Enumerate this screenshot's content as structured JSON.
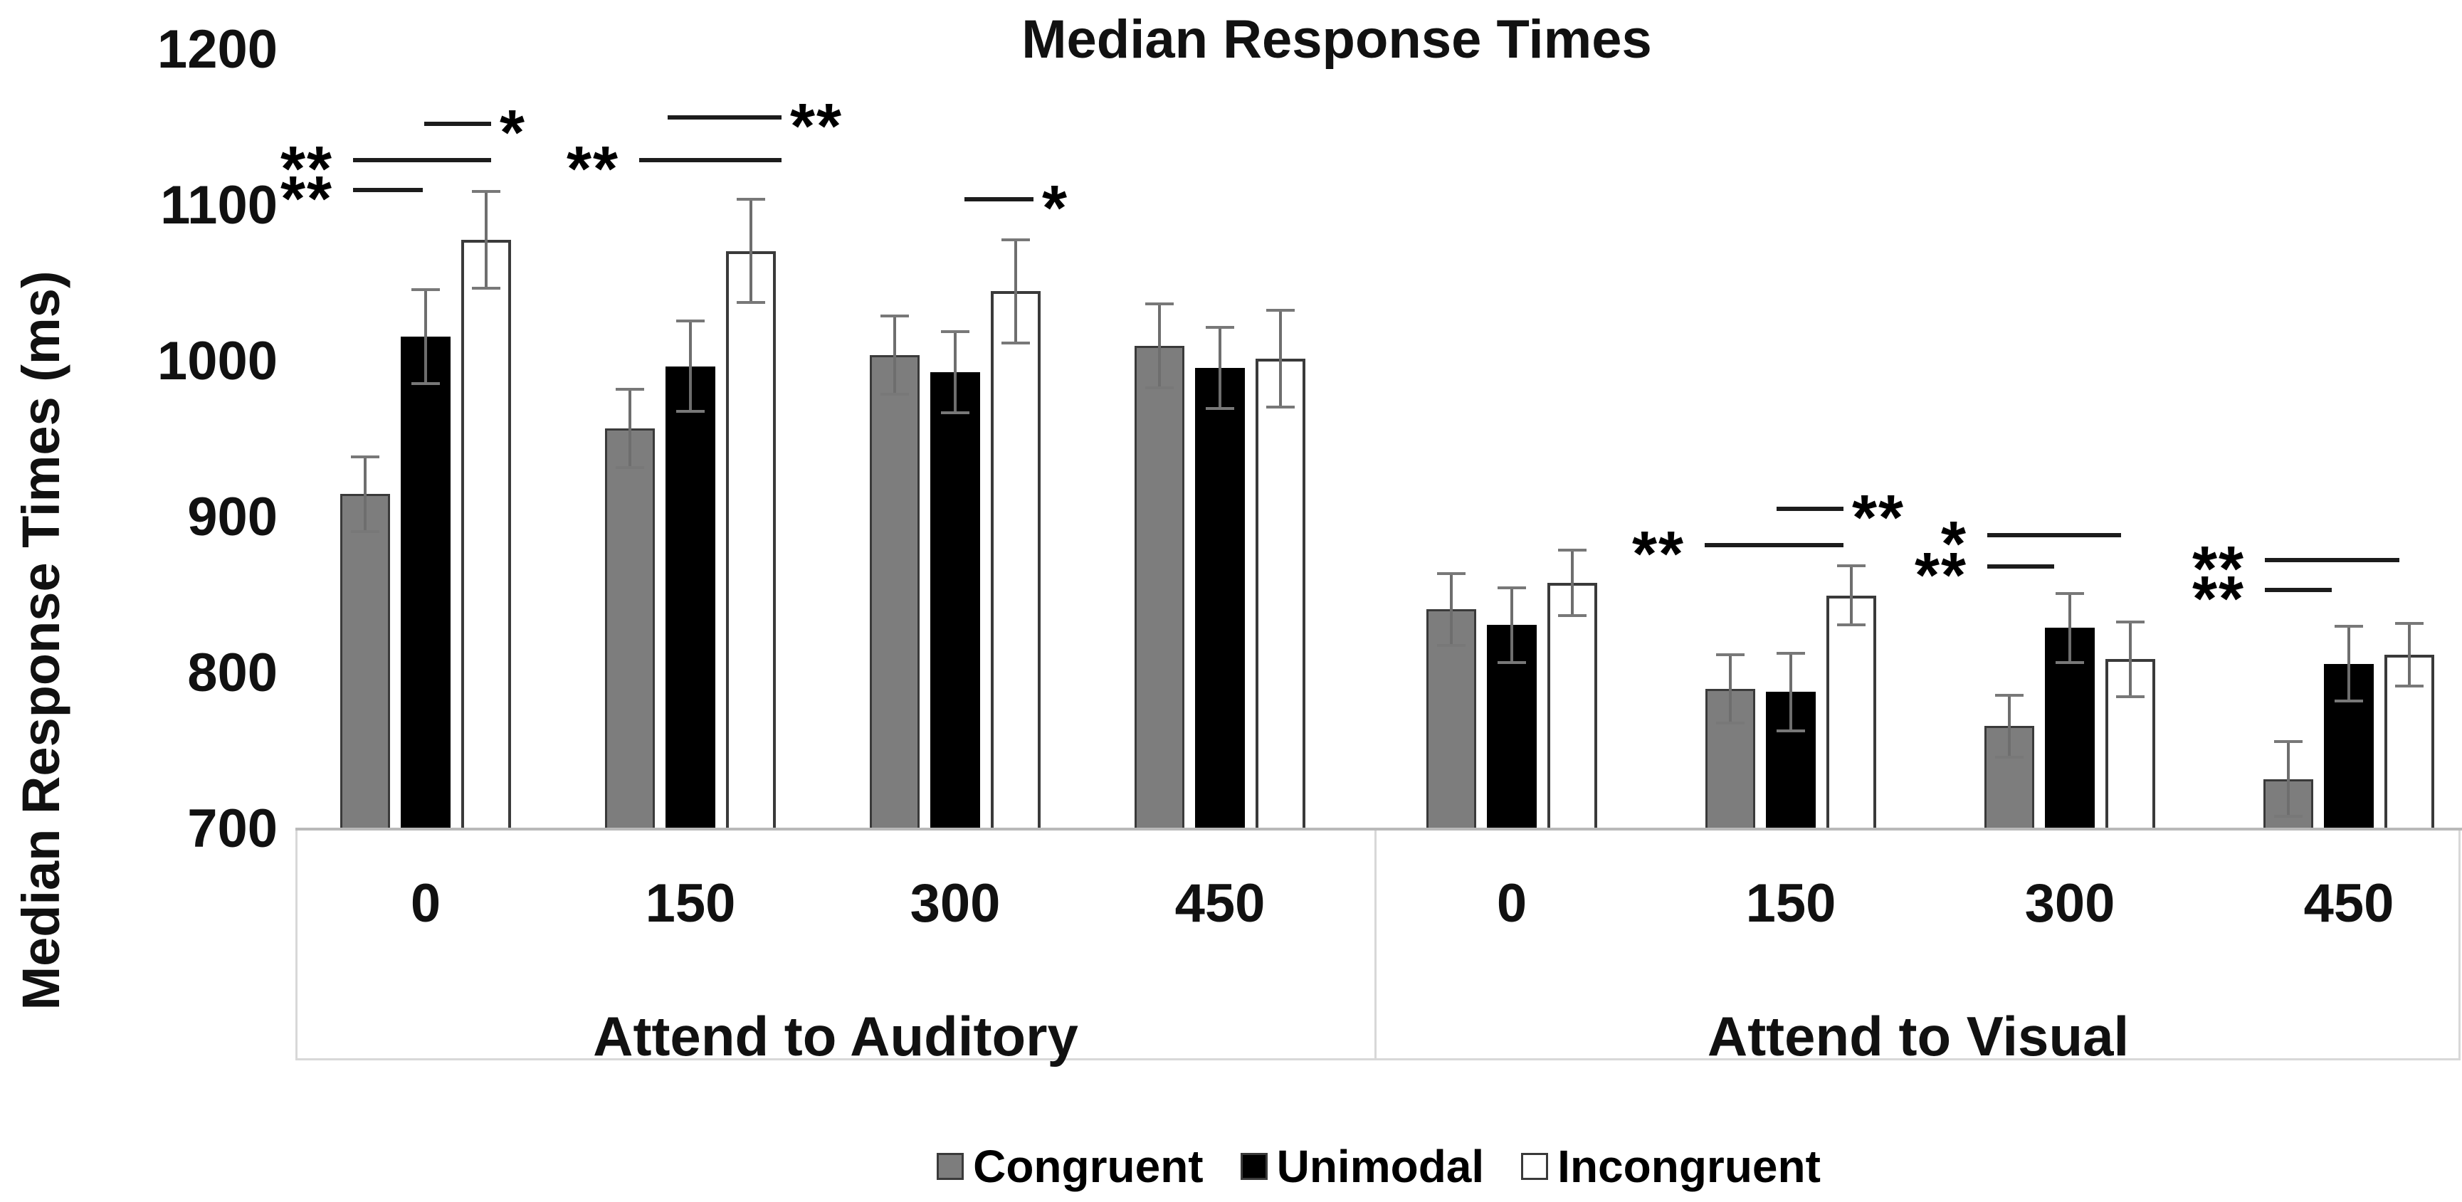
{
  "title": "Median Response Times",
  "y_axis": {
    "label": "Median Response Times (ms)",
    "ticks": [
      "1200",
      "1100",
      "1000",
      "900",
      "800",
      "700"
    ]
  },
  "x_axis": {
    "group_labels": [
      "Attend to Auditory",
      "Attend to Visual"
    ],
    "categories": [
      "0",
      "150",
      "300",
      "450"
    ]
  },
  "legend": {
    "items": [
      {
        "label": "Congruent",
        "fill": "#7d7d7d"
      },
      {
        "label": "Unimodal",
        "fill": "#000000"
      },
      {
        "label": "Incongruent",
        "fill": "#ffffff"
      }
    ]
  },
  "colors": {
    "bar_gray": "#7d7d7d",
    "bar_black": "#000000",
    "bar_white": "#ffffff",
    "bar_border": "#3a3a3a",
    "error_bar": "#6e6e6e",
    "axis_line": "#b9b9b9",
    "band_border": "#d8d8d8"
  },
  "chart_data": {
    "type": "bar",
    "title": "Median Response Times",
    "ylabel": "Median Response Times (ms)",
    "ylim": [
      700,
      1200
    ],
    "ytick_values": [
      1200,
      1100,
      1000,
      900,
      800,
      700
    ],
    "grid": false,
    "legend_position": "bottom",
    "group_labels": [
      "Attend to Auditory",
      "Attend to Visual"
    ],
    "categories": [
      "0",
      "150",
      "300",
      "450"
    ],
    "units": "ms",
    "error_bars": "symmetric, shown on every bar",
    "series": [
      {
        "name": "Congruent",
        "fill": "#7d7d7d",
        "values": {
          "auditory": [
            915,
            957,
            1004,
            1010
          ],
          "visual": [
            841,
            790,
            766,
            732
          ]
        },
        "errors": {
          "auditory": [
            24,
            25,
            25,
            27
          ],
          "visual": [
            23,
            22,
            20,
            24
          ]
        }
      },
      {
        "name": "Unimodal",
        "fill": "#000000",
        "values": {
          "auditory": [
            1016,
            997,
            993,
            996
          ],
          "visual": [
            831,
            788,
            829,
            806
          ]
        },
        "errors": {
          "auditory": [
            30,
            29,
            26,
            26
          ],
          "visual": [
            24,
            25,
            22,
            24
          ]
        }
      },
      {
        "name": "Incongruent",
        "fill": "#ffffff",
        "values": {
          "auditory": [
            1078,
            1071,
            1045,
            1002
          ],
          "visual": [
            858,
            850,
            809,
            812
          ]
        },
        "errors": {
          "auditory": [
            31,
            33,
            33,
            31
          ],
          "visual": [
            21,
            19,
            24,
            20
          ]
        }
      }
    ],
    "significance_markers": [
      {
        "symbol": "*",
        "comparison": "Unimodal vs Incongruent",
        "group": "Attend to Auditory",
        "category": "0",
        "star_side": "right",
        "x1": 596,
        "x2": 690,
        "y": 174
      },
      {
        "symbol": "**",
        "comparison": "Congruent vs Incongruent",
        "group": "Attend to Auditory",
        "category": "0",
        "star_side": "left",
        "x1": 496,
        "x2": 690,
        "y": 225
      },
      {
        "symbol": "**",
        "comparison": "Congruent vs Unimodal",
        "group": "Attend to Auditory",
        "category": "0",
        "star_side": "left",
        "x1": 496,
        "x2": 594,
        "y": 267
      },
      {
        "symbol": "**",
        "comparison": "Unimodal vs Incongruent",
        "group": "Attend to Auditory",
        "category": "150",
        "star_side": "right",
        "x1": 938,
        "x2": 1098,
        "y": 165
      },
      {
        "symbol": "**",
        "comparison": "Congruent vs Incongruent",
        "group": "Attend to Auditory",
        "category": "150",
        "star_side": "left",
        "x1": 898,
        "x2": 1098,
        "y": 225
      },
      {
        "symbol": "*",
        "comparison": "Unimodal vs Incongruent",
        "group": "Attend to Auditory",
        "category": "300",
        "star_side": "right",
        "x1": 1355,
        "x2": 1452,
        "y": 280
      },
      {
        "symbol": "**",
        "comparison": "Unimodal vs Incongruent",
        "group": "Attend to Visual",
        "category": "150",
        "star_side": "right",
        "x1": 2496,
        "x2": 2590,
        "y": 715
      },
      {
        "symbol": "**",
        "comparison": "Congruent vs Incongruent",
        "group": "Attend to Visual",
        "category": "150",
        "star_side": "left",
        "x1": 2395,
        "x2": 2590,
        "y": 766
      },
      {
        "symbol": "*",
        "comparison": "Congruent vs Incongruent",
        "group": "Attend to Visual",
        "category": "300",
        "star_side": "left",
        "x1": 2792,
        "x2": 2980,
        "y": 752
      },
      {
        "symbol": "**",
        "comparison": "Congruent vs Unimodal",
        "group": "Attend to Visual",
        "category": "300",
        "star_side": "left",
        "x1": 2792,
        "x2": 2886,
        "y": 796
      },
      {
        "symbol": "**",
        "comparison": "Congruent vs Incongruent",
        "group": "Attend to Visual",
        "category": "450",
        "star_side": "left",
        "x1": 3182,
        "x2": 3371,
        "y": 787
      },
      {
        "symbol": "**",
        "comparison": "Congruent vs Unimodal",
        "group": "Attend to Visual",
        "category": "450",
        "star_side": "left",
        "x1": 3182,
        "x2": 3276,
        "y": 829
      }
    ]
  }
}
